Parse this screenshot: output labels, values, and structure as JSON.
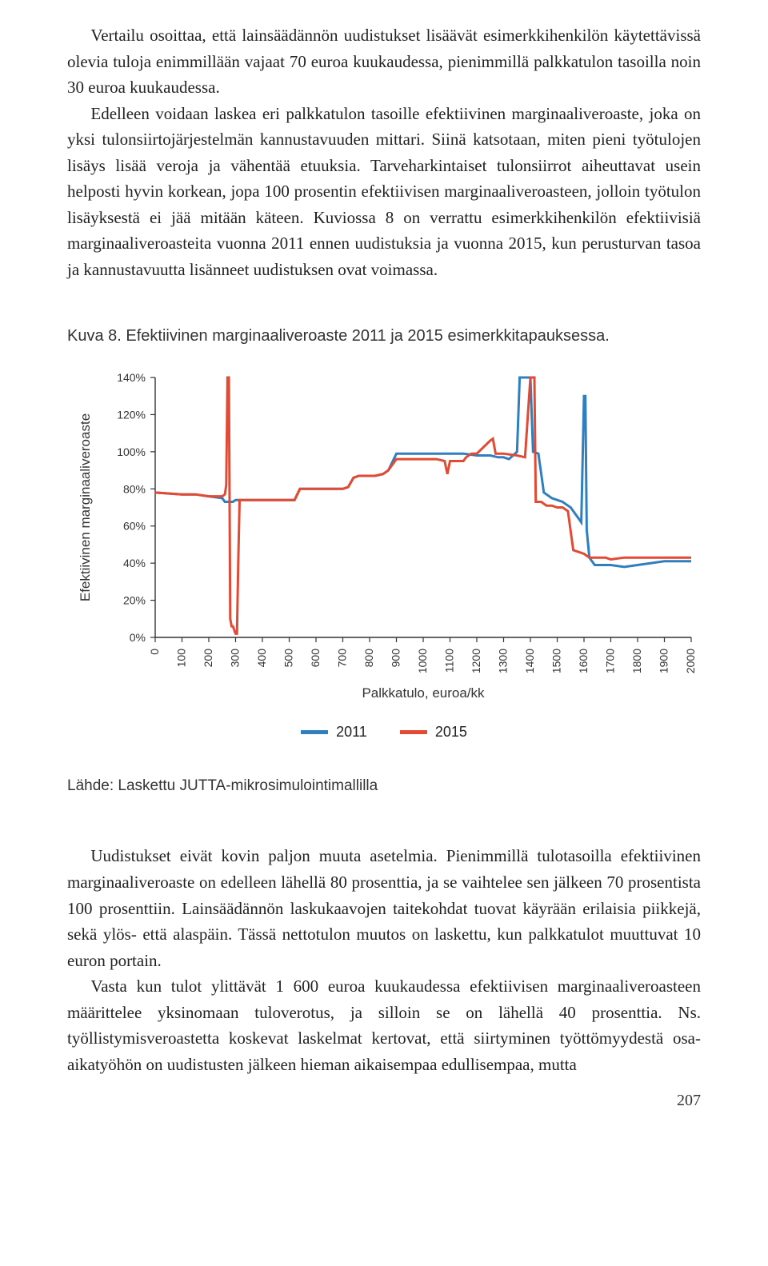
{
  "paragraphs": {
    "p1": "Vertailu osoittaa, että lainsäädännön uudistukset lisäävät esimerkkihenkilön käytettävissä olevia tuloja enimmillään vajaat 70 euroa kuukaudessa, pienimmillä palkkatulon tasoilla noin 30 euroa kuukaudessa.",
    "p2": "Edelleen voidaan laskea eri palkkatulon tasoille efektiivinen marginaaliveroaste, joka on yksi tulonsiirtojärjestelmän kannustavuuden mittari. Siinä katsotaan, miten pieni työtulojen lisäys lisää veroja ja vähentää etuuksia. Tarveharkintaiset tulonsiirrot aiheuttavat usein helposti hyvin korkean, jopa 100 prosentin efektiivisen marginaaliveroasteen, jolloin työtulon lisäyksestä ei jää mitään käteen. Kuviossa 8 on verrattu esimerkkihenkilön efektiivisiä marginaaliveroasteita vuonna 2011 ennen uudistuksia ja vuonna 2015, kun perusturvan tasoa ja kannustavuutta lisänneet uudistuksen ovat voimassa.",
    "p3": "Uudistukset eivät kovin paljon muuta asetelmia. Pienimmillä tulotasoilla efektiivinen marginaaliveroaste on edelleen lähellä 80 prosenttia, ja se vaihtelee sen jälkeen 70 prosentista 100 prosenttiin. Lainsäädännön laskukaavojen taitekohdat tuovat käyrään erilaisia piikkejä, sekä ylös- että alaspäin. Tässä nettotulon muutos on laskettu, kun palkkatulot muuttuvat 10 euron portain.",
    "p4": "Vasta kun tulot ylittävät 1 600 euroa kuukaudessa efektiivisen marginaaliveroasteen määrittelee yksinomaan tuloverotus, ja silloin se on lähellä 40 prosenttia. Ns. työllistymisveroastetta koskevat laskelmat kertovat, että siirtyminen työttömyydestä osa-aikatyöhön on uudistusten jälkeen hieman aikaisempaa edullisempaa, mutta"
  },
  "figure": {
    "caption": "Kuva 8. Efektiivinen marginaaliveroaste 2011 ja 2015 esimerkkitapauksessa.",
    "source": "Lähde: Laskettu JUTTA-mikrosimulointimallilla",
    "x_label": "Palkkatulo, euroa/kk",
    "y_label": "Efektiivinen marginaaliveroaste",
    "x_ticks": [
      0,
      100,
      200,
      300,
      400,
      500,
      600,
      700,
      800,
      900,
      1000,
      1100,
      1200,
      1300,
      1400,
      1500,
      1600,
      1700,
      1800,
      1900,
      2000
    ],
    "y_ticks": [
      0,
      20,
      40,
      60,
      80,
      100,
      120,
      140
    ],
    "y_tick_labels": [
      "0%",
      "20%",
      "40%",
      "60%",
      "80%",
      "100%",
      "120%",
      "140%"
    ],
    "xlim": [
      0,
      2000
    ],
    "ylim": [
      0,
      140
    ],
    "axis_color": "#333333",
    "grid_color": "#ffffff",
    "background_color": "#ffffff",
    "tick_font_size": 14,
    "label_font_size": 17,
    "line_width": 3,
    "legend": [
      {
        "label": "2011",
        "color": "#2f7fbf"
      },
      {
        "label": "2015",
        "color": "#e24a33"
      }
    ],
    "series": {
      "s2011": {
        "color": "#2f7fbf",
        "points": [
          [
            0,
            78
          ],
          [
            100,
            77
          ],
          [
            150,
            77
          ],
          [
            200,
            76
          ],
          [
            250,
            75
          ],
          [
            260,
            73
          ],
          [
            280,
            73
          ],
          [
            290,
            73
          ],
          [
            300,
            74
          ],
          [
            350,
            74
          ],
          [
            400,
            74
          ],
          [
            450,
            74
          ],
          [
            500,
            74
          ],
          [
            520,
            74
          ],
          [
            540,
            80
          ],
          [
            560,
            80
          ],
          [
            580,
            80
          ],
          [
            600,
            80
          ],
          [
            620,
            80
          ],
          [
            650,
            80
          ],
          [
            700,
            80
          ],
          [
            720,
            81
          ],
          [
            740,
            86
          ],
          [
            760,
            87
          ],
          [
            780,
            87
          ],
          [
            800,
            87
          ],
          [
            820,
            87
          ],
          [
            850,
            88
          ],
          [
            870,
            90
          ],
          [
            900,
            99
          ],
          [
            920,
            99
          ],
          [
            940,
            99
          ],
          [
            960,
            99
          ],
          [
            980,
            99
          ],
          [
            1000,
            99
          ],
          [
            1050,
            99
          ],
          [
            1100,
            99
          ],
          [
            1150,
            99
          ],
          [
            1200,
            98
          ],
          [
            1250,
            98
          ],
          [
            1280,
            97
          ],
          [
            1300,
            97
          ],
          [
            1320,
            96
          ],
          [
            1350,
            100
          ],
          [
            1360,
            140
          ],
          [
            1370,
            140
          ],
          [
            1380,
            140
          ],
          [
            1390,
            140
          ],
          [
            1400,
            140
          ],
          [
            1410,
            100
          ],
          [
            1430,
            99
          ],
          [
            1450,
            78
          ],
          [
            1460,
            77
          ],
          [
            1480,
            75
          ],
          [
            1500,
            74
          ],
          [
            1520,
            73
          ],
          [
            1540,
            71
          ],
          [
            1550,
            70
          ],
          [
            1560,
            68
          ],
          [
            1580,
            64
          ],
          [
            1590,
            62
          ],
          [
            1600,
            130
          ],
          [
            1605,
            130
          ],
          [
            1610,
            58
          ],
          [
            1620,
            43
          ],
          [
            1640,
            39
          ],
          [
            1700,
            39
          ],
          [
            1750,
            38
          ],
          [
            1800,
            39
          ],
          [
            1850,
            40
          ],
          [
            1900,
            41
          ],
          [
            1950,
            41
          ],
          [
            2000,
            41
          ]
        ]
      },
      "s2015": {
        "color": "#e24a33",
        "points": [
          [
            0,
            78
          ],
          [
            100,
            77
          ],
          [
            150,
            77
          ],
          [
            200,
            76
          ],
          [
            250,
            76
          ],
          [
            260,
            77
          ],
          [
            265,
            82
          ],
          [
            270,
            140
          ],
          [
            275,
            140
          ],
          [
            280,
            10
          ],
          [
            285,
            6
          ],
          [
            290,
            6
          ],
          [
            300,
            2
          ],
          [
            305,
            2
          ],
          [
            310,
            40
          ],
          [
            315,
            74
          ],
          [
            320,
            74
          ],
          [
            350,
            74
          ],
          [
            400,
            74
          ],
          [
            450,
            74
          ],
          [
            500,
            74
          ],
          [
            520,
            74
          ],
          [
            540,
            80
          ],
          [
            560,
            80
          ],
          [
            580,
            80
          ],
          [
            600,
            80
          ],
          [
            620,
            80
          ],
          [
            650,
            80
          ],
          [
            700,
            80
          ],
          [
            720,
            81
          ],
          [
            740,
            86
          ],
          [
            760,
            87
          ],
          [
            780,
            87
          ],
          [
            800,
            87
          ],
          [
            820,
            87
          ],
          [
            850,
            88
          ],
          [
            870,
            90
          ],
          [
            900,
            96
          ],
          [
            920,
            96
          ],
          [
            950,
            96
          ],
          [
            1000,
            96
          ],
          [
            1050,
            96
          ],
          [
            1080,
            95
          ],
          [
            1090,
            88
          ],
          [
            1100,
            95
          ],
          [
            1150,
            95
          ],
          [
            1160,
            97
          ],
          [
            1180,
            99
          ],
          [
            1200,
            99
          ],
          [
            1250,
            106
          ],
          [
            1260,
            107
          ],
          [
            1270,
            99
          ],
          [
            1300,
            99
          ],
          [
            1350,
            98
          ],
          [
            1380,
            97
          ],
          [
            1400,
            140
          ],
          [
            1410,
            140
          ],
          [
            1415,
            140
          ],
          [
            1420,
            73
          ],
          [
            1440,
            73
          ],
          [
            1460,
            71
          ],
          [
            1480,
            71
          ],
          [
            1500,
            70
          ],
          [
            1520,
            70
          ],
          [
            1540,
            68
          ],
          [
            1560,
            47
          ],
          [
            1580,
            46
          ],
          [
            1600,
            45
          ],
          [
            1620,
            43
          ],
          [
            1640,
            43
          ],
          [
            1660,
            43
          ],
          [
            1680,
            43
          ],
          [
            1700,
            42
          ],
          [
            1750,
            43
          ],
          [
            1800,
            43
          ],
          [
            1850,
            43
          ],
          [
            1900,
            43
          ],
          [
            1950,
            43
          ],
          [
            2000,
            43
          ]
        ]
      }
    }
  },
  "page_number": "207"
}
